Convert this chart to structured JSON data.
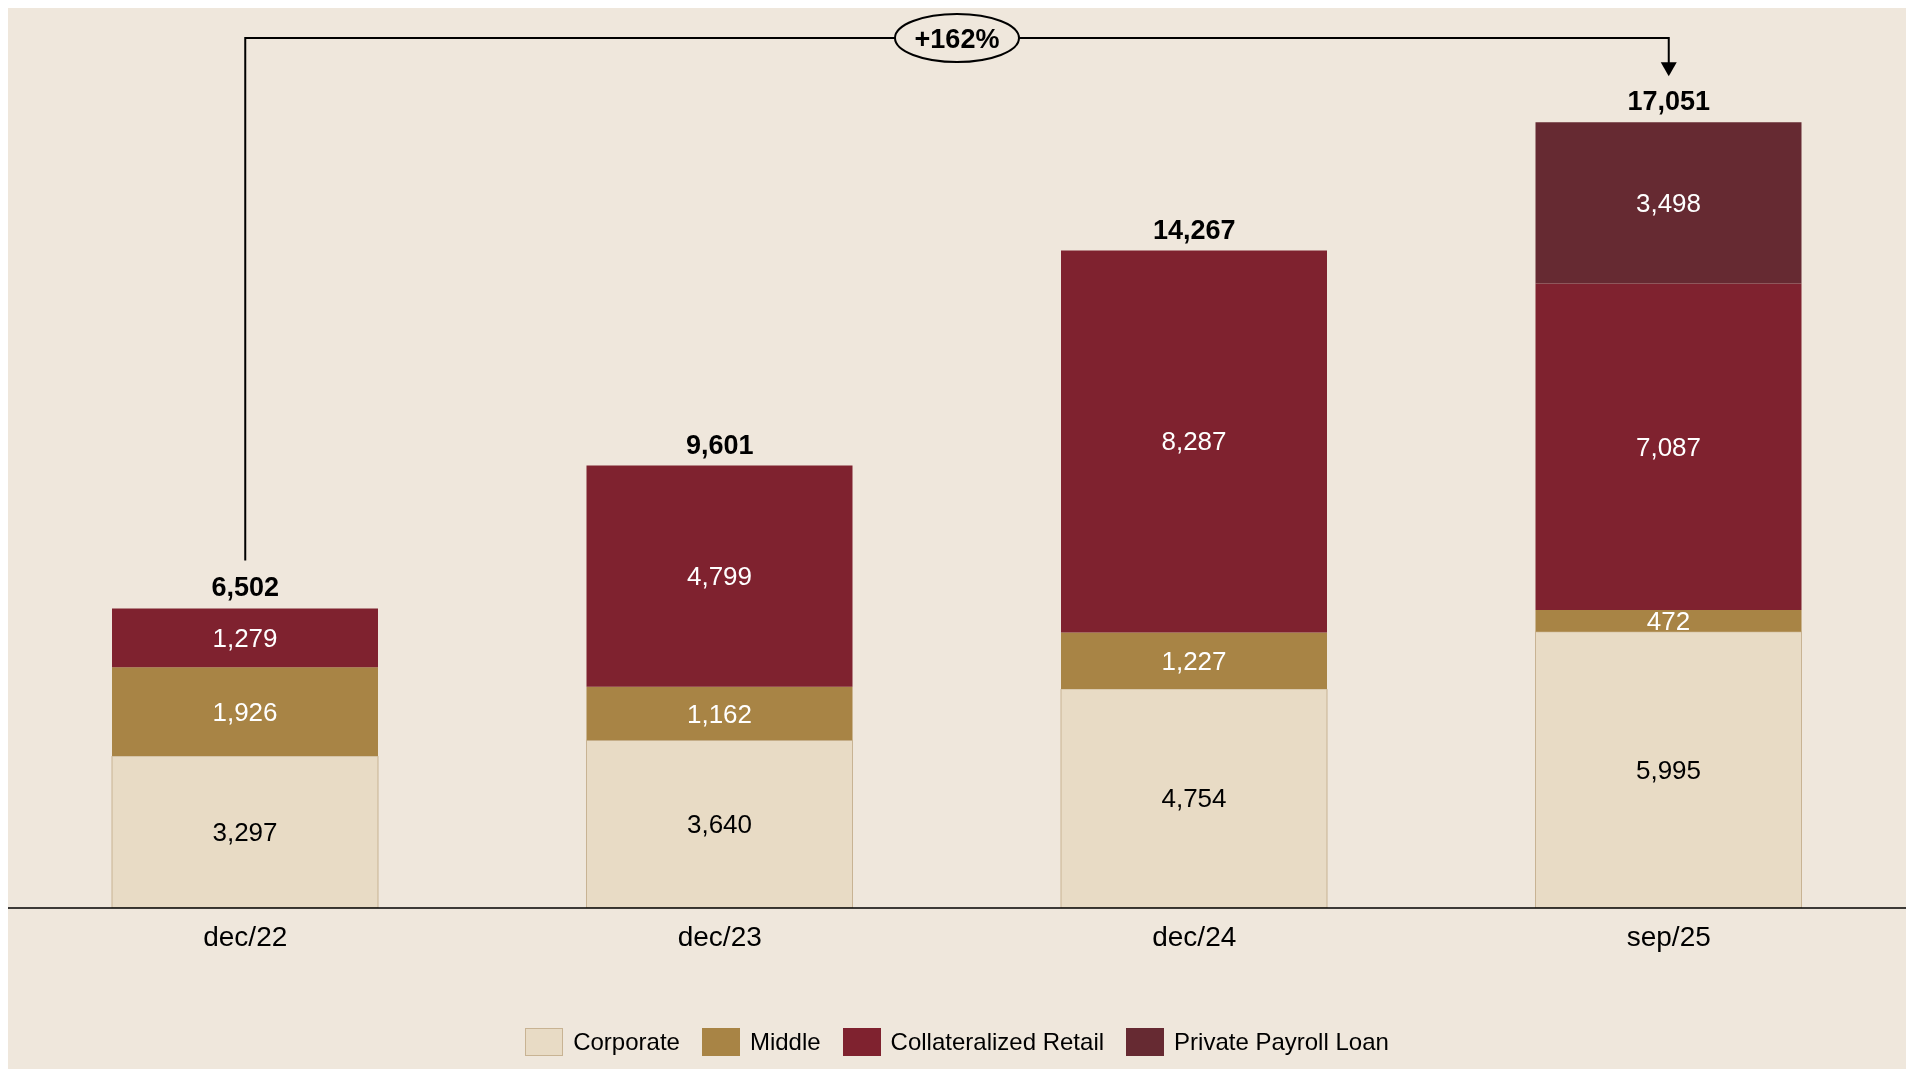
{
  "chart_data": {
    "type": "bar",
    "stacked": true,
    "categories": [
      "dec/22",
      "dec/23",
      "dec/24",
      "sep/25"
    ],
    "series": [
      {
        "name": "Corporate",
        "color": "#e8dbc5",
        "values": [
          3297,
          3640,
          4754,
          5995
        ],
        "value_labels": [
          "3,297",
          "3,640",
          "4,754",
          "5,995"
        ]
      },
      {
        "name": "Middle",
        "color": "#a88445",
        "values": [
          1926,
          1162,
          1227,
          472
        ],
        "value_labels": [
          "1,926",
          "1,162",
          "1,227",
          "472"
        ]
      },
      {
        "name": "Collateralized Retail",
        "color": "#7f222f",
        "values": [
          1279,
          4799,
          8287,
          7087
        ],
        "value_labels": [
          "1,279",
          "4,799",
          "8,287",
          "7,087"
        ]
      },
      {
        "name": "Private Payroll Loan",
        "color": "#662a32",
        "values": [
          null,
          null,
          null,
          3498
        ],
        "value_labels": [
          null,
          null,
          null,
          "3,498"
        ]
      }
    ],
    "totals": [
      "6,502",
      "9,601",
      "14,267",
      "17,051"
    ],
    "annotations": [
      "+162%"
    ],
    "legend": "bottom"
  }
}
